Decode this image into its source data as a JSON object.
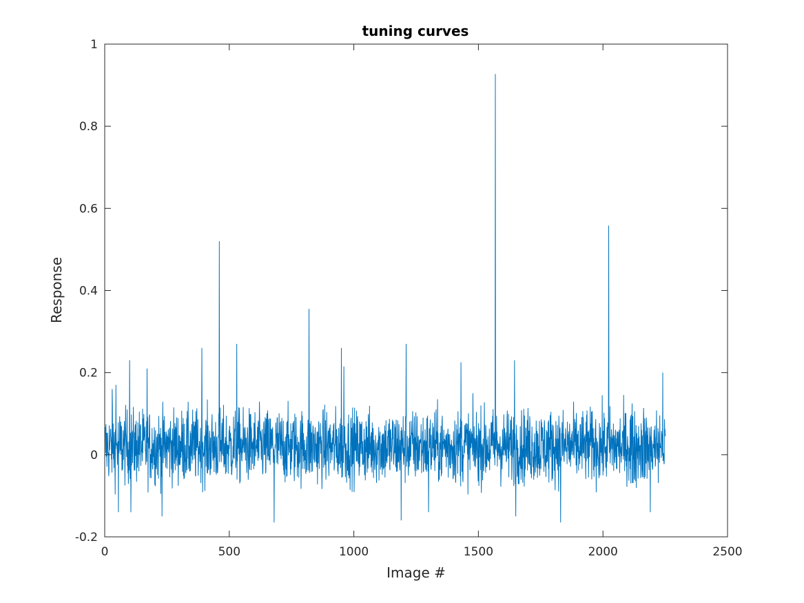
{
  "chart_data": {
    "type": "line",
    "title": "tuning curves",
    "xlabel": "Image #",
    "ylabel": "Response",
    "xlim": [
      0,
      2500
    ],
    "ylim": [
      -0.2,
      1
    ],
    "xticks": [
      0,
      500,
      1000,
      1500,
      2000,
      2500
    ],
    "xtick_labels": [
      "0",
      "500",
      "1000",
      "1500",
      "2000",
      "2500"
    ],
    "yticks": [
      -0.2,
      0,
      0.2,
      0.4,
      0.6,
      0.8,
      1
    ],
    "ytick_labels": [
      "-0.2",
      "0",
      "0.2",
      "0.4",
      "0.6",
      "0.8",
      "1"
    ],
    "grid": false,
    "line_color": "#0072BD",
    "series": [
      {
        "x_start": 1,
        "x_step": 1,
        "count": 2250,
        "noise_range": [
          -0.1,
          0.18
        ],
        "peaks": [
          {
            "x": 30,
            "y": 0.16
          },
          {
            "x": 45,
            "y": 0.17
          },
          {
            "x": 55,
            "y": -0.14
          },
          {
            "x": 100,
            "y": 0.23
          },
          {
            "x": 105,
            "y": -0.14
          },
          {
            "x": 170,
            "y": 0.21
          },
          {
            "x": 230,
            "y": -0.15
          },
          {
            "x": 390,
            "y": 0.26
          },
          {
            "x": 460,
            "y": 0.52
          },
          {
            "x": 530,
            "y": 0.27
          },
          {
            "x": 680,
            "y": -0.165
          },
          {
            "x": 820,
            "y": 0.355
          },
          {
            "x": 950,
            "y": 0.26
          },
          {
            "x": 960,
            "y": 0.215
          },
          {
            "x": 1190,
            "y": -0.16
          },
          {
            "x": 1210,
            "y": 0.27
          },
          {
            "x": 1300,
            "y": -0.14
          },
          {
            "x": 1430,
            "y": 0.225
          },
          {
            "x": 1568,
            "y": 0.927
          },
          {
            "x": 1645,
            "y": 0.23
          },
          {
            "x": 1650,
            "y": -0.15
          },
          {
            "x": 1830,
            "y": -0.165
          },
          {
            "x": 2023,
            "y": 0.558
          },
          {
            "x": 2190,
            "y": -0.14
          },
          {
            "x": 2240,
            "y": 0.2
          }
        ]
      }
    ]
  }
}
